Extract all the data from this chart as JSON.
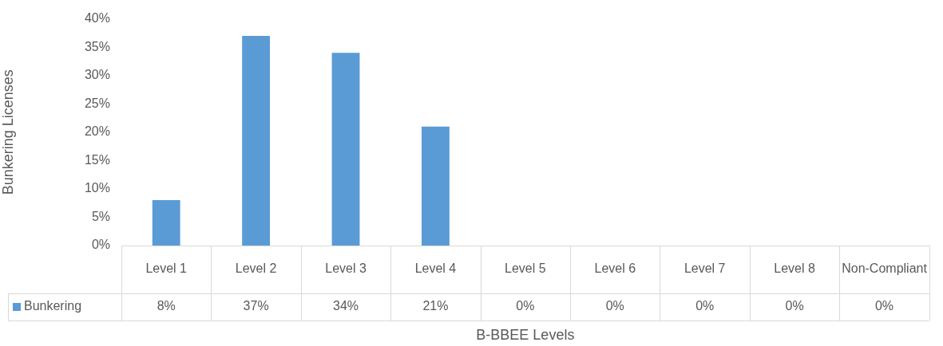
{
  "chart_data": {
    "type": "bar",
    "xlabel": "B-BBEE Levels",
    "ylabel": "Bunkering Licenses",
    "categories": [
      "Level 1",
      "Level 2",
      "Level 3",
      "Level 4",
      "Level 5",
      "Level 6",
      "Level 7",
      "Level 8",
      "Non-Compliant"
    ],
    "series": [
      {
        "name": "Bunkering",
        "color": "#5b9bd5",
        "values": [
          8,
          37,
          34,
          21,
          0,
          0,
          0,
          0,
          0
        ],
        "value_labels": [
          "8%",
          "37%",
          "34%",
          "21%",
          "0%",
          "0%",
          "0%",
          "0%",
          "0%"
        ]
      }
    ],
    "ylim": [
      0,
      40
    ],
    "yticks": [
      {
        "value": 0,
        "label": "0%"
      },
      {
        "value": 5,
        "label": "5%"
      },
      {
        "value": 10,
        "label": "10%"
      },
      {
        "value": 15,
        "label": "15%"
      },
      {
        "value": 20,
        "label": "20%"
      },
      {
        "value": 25,
        "label": "25%"
      },
      {
        "value": 30,
        "label": "30%"
      },
      {
        "value": 35,
        "label": "35%"
      },
      {
        "value": 40,
        "label": "40%"
      }
    ],
    "grid": false,
    "legend": "bottom left"
  }
}
